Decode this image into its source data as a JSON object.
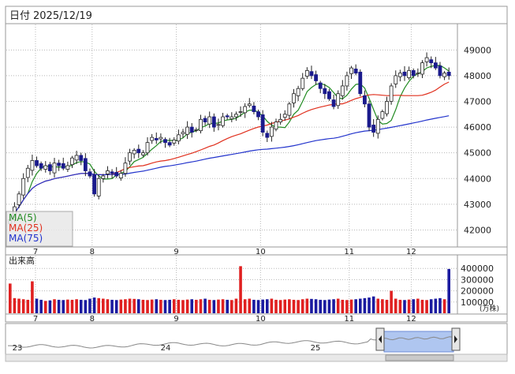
{
  "header": {
    "date_label": "日付",
    "date_value": "2025/12/19"
  },
  "legend": {
    "items": [
      {
        "label": "MA(5)",
        "color": "#228B22"
      },
      {
        "label": "MA(25)",
        "color": "#E0301E"
      },
      {
        "label": "MA(75)",
        "color": "#2233CC"
      }
    ]
  },
  "volume_panel": {
    "title": "出来高",
    "unit": "(万株)"
  },
  "colors": {
    "up": "#E02020",
    "down": "#1A1AA0",
    "candle_up_fill": "#FFFFFF",
    "candle_down_fill": "#1A1A8C",
    "grid": "#B8B8B8",
    "frame": "#999999",
    "navigator_fill": "#AFC6F0"
  },
  "navigator": {
    "labels": [
      "23",
      "24",
      "25"
    ]
  },
  "chart_data": [
    {
      "type": "candlestick",
      "title": "",
      "x_labels": [
        "7",
        "8",
        "9",
        "10",
        "11",
        "12"
      ],
      "ylim": [
        41400,
        49900
      ],
      "y_ticks": [
        42000,
        43000,
        44000,
        45000,
        46000,
        47000,
        48000,
        49000
      ],
      "close_series": [
        42400,
        42900,
        43400,
        44000,
        44400,
        44700,
        44500,
        44400,
        44500,
        44300,
        44600,
        44500,
        44400,
        44500,
        44800,
        44900,
        44700,
        44300,
        44100,
        43400,
        44000,
        44100,
        44300,
        44200,
        44100,
        44200,
        44600,
        45000,
        45100,
        45000,
        45000,
        45400,
        45600,
        45500,
        45600,
        45400,
        45300,
        45500,
        45700,
        45800,
        46000,
        45800,
        45900,
        46300,
        46200,
        46400,
        46000,
        46100,
        46400,
        46400,
        46400,
        46500,
        46600,
        46800,
        46900,
        46600,
        46400,
        45800,
        45600,
        46000,
        46200,
        46300,
        46500,
        46900,
        47300,
        47500,
        47900,
        48200,
        48000,
        47800,
        47500,
        47300,
        47100,
        46800,
        47300,
        47600,
        48000,
        48300,
        48100,
        47300,
        46900,
        46000,
        45800,
        46300,
        46600,
        47000,
        47600,
        48000,
        48100,
        48000,
        48200,
        48000,
        48100,
        48500,
        48700,
        48500,
        48300,
        48000,
        48100,
        48000
      ],
      "series": [
        {
          "name": "MA(5)",
          "values": [
            42400,
            42650,
            42900,
            43175,
            43420,
            43880,
            44200,
            44400,
            44500,
            44460,
            44460,
            44440,
            44460,
            44460,
            44520,
            44620,
            44660,
            44640,
            44560,
            44280,
            44100,
            43980,
            43980,
            44000,
            44140,
            44200,
            44280,
            44460,
            44660,
            44740,
            44820,
            44980,
            45140,
            45280,
            45440,
            45480,
            45480,
            45480,
            45500,
            45580,
            45740,
            45800,
            45860,
            45980,
            46040,
            46140,
            46140,
            46160,
            46240,
            46280,
            46300,
            46340,
            46460,
            46580,
            46660,
            46660,
            46580,
            46440,
            46220,
            46080,
            46000,
            46000,
            45980,
            46200,
            46500,
            46660,
            47000,
            47380,
            47540,
            47660,
            47700,
            47640,
            47540,
            47340,
            47140,
            47100,
            47240,
            47480,
            47660,
            47680,
            47520,
            47120,
            46680,
            46260,
            46120,
            46140,
            46260,
            46680,
            47180,
            47520,
            47780,
            47980,
            48080,
            48160,
            48300,
            48360,
            48400,
            48400,
            48300,
            48180
          ]
        },
        {
          "name": "MA(25)",
          "values": [
            42400,
            42650,
            42900,
            43175,
            43420,
            43617,
            43743,
            43825,
            43900,
            43940,
            43995,
            44029,
            44060,
            44093,
            44133,
            44169,
            44197,
            44203,
            44197,
            44160,
            44152,
            44147,
            44153,
            44155,
            44232,
            44302,
            44390,
            44430,
            44460,
            44488,
            44500,
            44544,
            44600,
            44648,
            44680,
            44700,
            44732,
            44780,
            44828,
            44880,
            44936,
            44984,
            45044,
            45112,
            45180,
            45252,
            45304,
            45384,
            45476,
            45556,
            45628,
            45688,
            45740,
            45812,
            45884,
            45948,
            46004,
            46040,
            46080,
            46140,
            46192,
            46232,
            46272,
            46320,
            46388,
            46452,
            46540,
            46620,
            46684,
            46732,
            46780,
            46820,
            46860,
            46888,
            46904,
            46904,
            46964,
            47040,
            47108,
            47156,
            47212,
            47252,
            47268,
            47256,
            47240,
            47224,
            47228,
            47236,
            47236,
            47224,
            47224,
            47224,
            47224,
            47240,
            47292,
            47352,
            47440,
            47560,
            47672,
            47752
          ]
        },
        {
          "name": "MA(75)",
          "values": [
            42400,
            42650,
            42900,
            43175,
            43420,
            43617,
            43743,
            43825,
            43900,
            43940,
            43995,
            44029,
            44060,
            44093,
            44133,
            44169,
            44197,
            44203,
            44197,
            44160,
            44152,
            44147,
            44153,
            44155,
            44160,
            44162,
            44178,
            44207,
            44238,
            44263,
            44287,
            44323,
            44364,
            44400,
            44440,
            44471,
            44494,
            44521,
            44551,
            44583,
            44619,
            44648,
            44678,
            44718,
            44753,
            44791,
            44819,
            44849,
            44880,
            44910,
            44939,
            44968,
            44998,
            45032,
            45066,
            45094,
            45118,
            45133,
            45145,
            45162,
            45180,
            45198,
            45219,
            45247,
            45280,
            45316,
            45355,
            45399,
            45439,
            45474,
            45502,
            45527,
            45551,
            45568,
            45599,
            45643,
            45690,
            45738,
            45782,
            45816,
            45845,
            45862,
            45879,
            45903,
            45931,
            45960,
            45992,
            46024,
            46057,
            46091,
            46127,
            46161,
            46195,
            46236,
            46275,
            46311,
            46344,
            46377,
            46409,
            46441
          ]
        }
      ]
    },
    {
      "type": "bar",
      "title": "出来高",
      "unit": "(万株)",
      "ylim": [
        0,
        500000
      ],
      "y_ticks": [
        100000,
        200000,
        300000,
        400000
      ],
      "values": [
        265000,
        135000,
        130000,
        125000,
        120000,
        285000,
        130000,
        120000,
        110000,
        115000,
        125000,
        120000,
        118000,
        122000,
        120000,
        125000,
        120000,
        118000,
        130000,
        140000,
        135000,
        130000,
        125000,
        120000,
        118000,
        122000,
        125000,
        130000,
        128000,
        125000,
        120000,
        118000,
        122000,
        125000,
        120000,
        118000,
        120000,
        125000,
        120000,
        118000,
        122000,
        125000,
        120000,
        125000,
        130000,
        120000,
        118000,
        122000,
        125000,
        120000,
        118000,
        130000,
        420000,
        125000,
        130000,
        120000,
        118000,
        122000,
        125000,
        130000,
        120000,
        118000,
        122000,
        125000,
        120000,
        118000,
        125000,
        130000,
        128000,
        125000,
        120000,
        118000,
        122000,
        125000,
        130000,
        120000,
        118000,
        122000,
        125000,
        130000,
        135000,
        140000,
        150000,
        130000,
        125000,
        120000,
        200000,
        130000,
        120000,
        118000,
        122000,
        125000,
        130000,
        120000,
        118000,
        125000,
        130000,
        135000,
        125000,
        395000
      ],
      "up_flags": [
        1,
        1,
        1,
        1,
        1,
        1,
        0,
        0,
        1,
        0,
        1,
        0,
        0,
        1,
        1,
        1,
        0,
        0,
        0,
        0,
        1,
        1,
        1,
        0,
        0,
        1,
        1,
        1,
        1,
        0,
        1,
        1,
        1,
        0,
        1,
        0,
        0,
        1,
        1,
        1,
        1,
        0,
        1,
        1,
        0,
        1,
        0,
        1,
        1,
        0,
        1,
        1,
        1,
        1,
        1,
        0,
        0,
        0,
        0,
        1,
        1,
        1,
        1,
        1,
        1,
        1,
        1,
        1,
        0,
        0,
        0,
        0,
        0,
        0,
        1,
        1,
        1,
        1,
        0,
        0,
        0,
        0,
        0,
        1,
        1,
        1,
        1,
        1,
        1,
        0,
        1,
        0,
        1,
        1,
        1,
        0,
        0,
        0,
        1,
        0
      ]
    }
  ]
}
